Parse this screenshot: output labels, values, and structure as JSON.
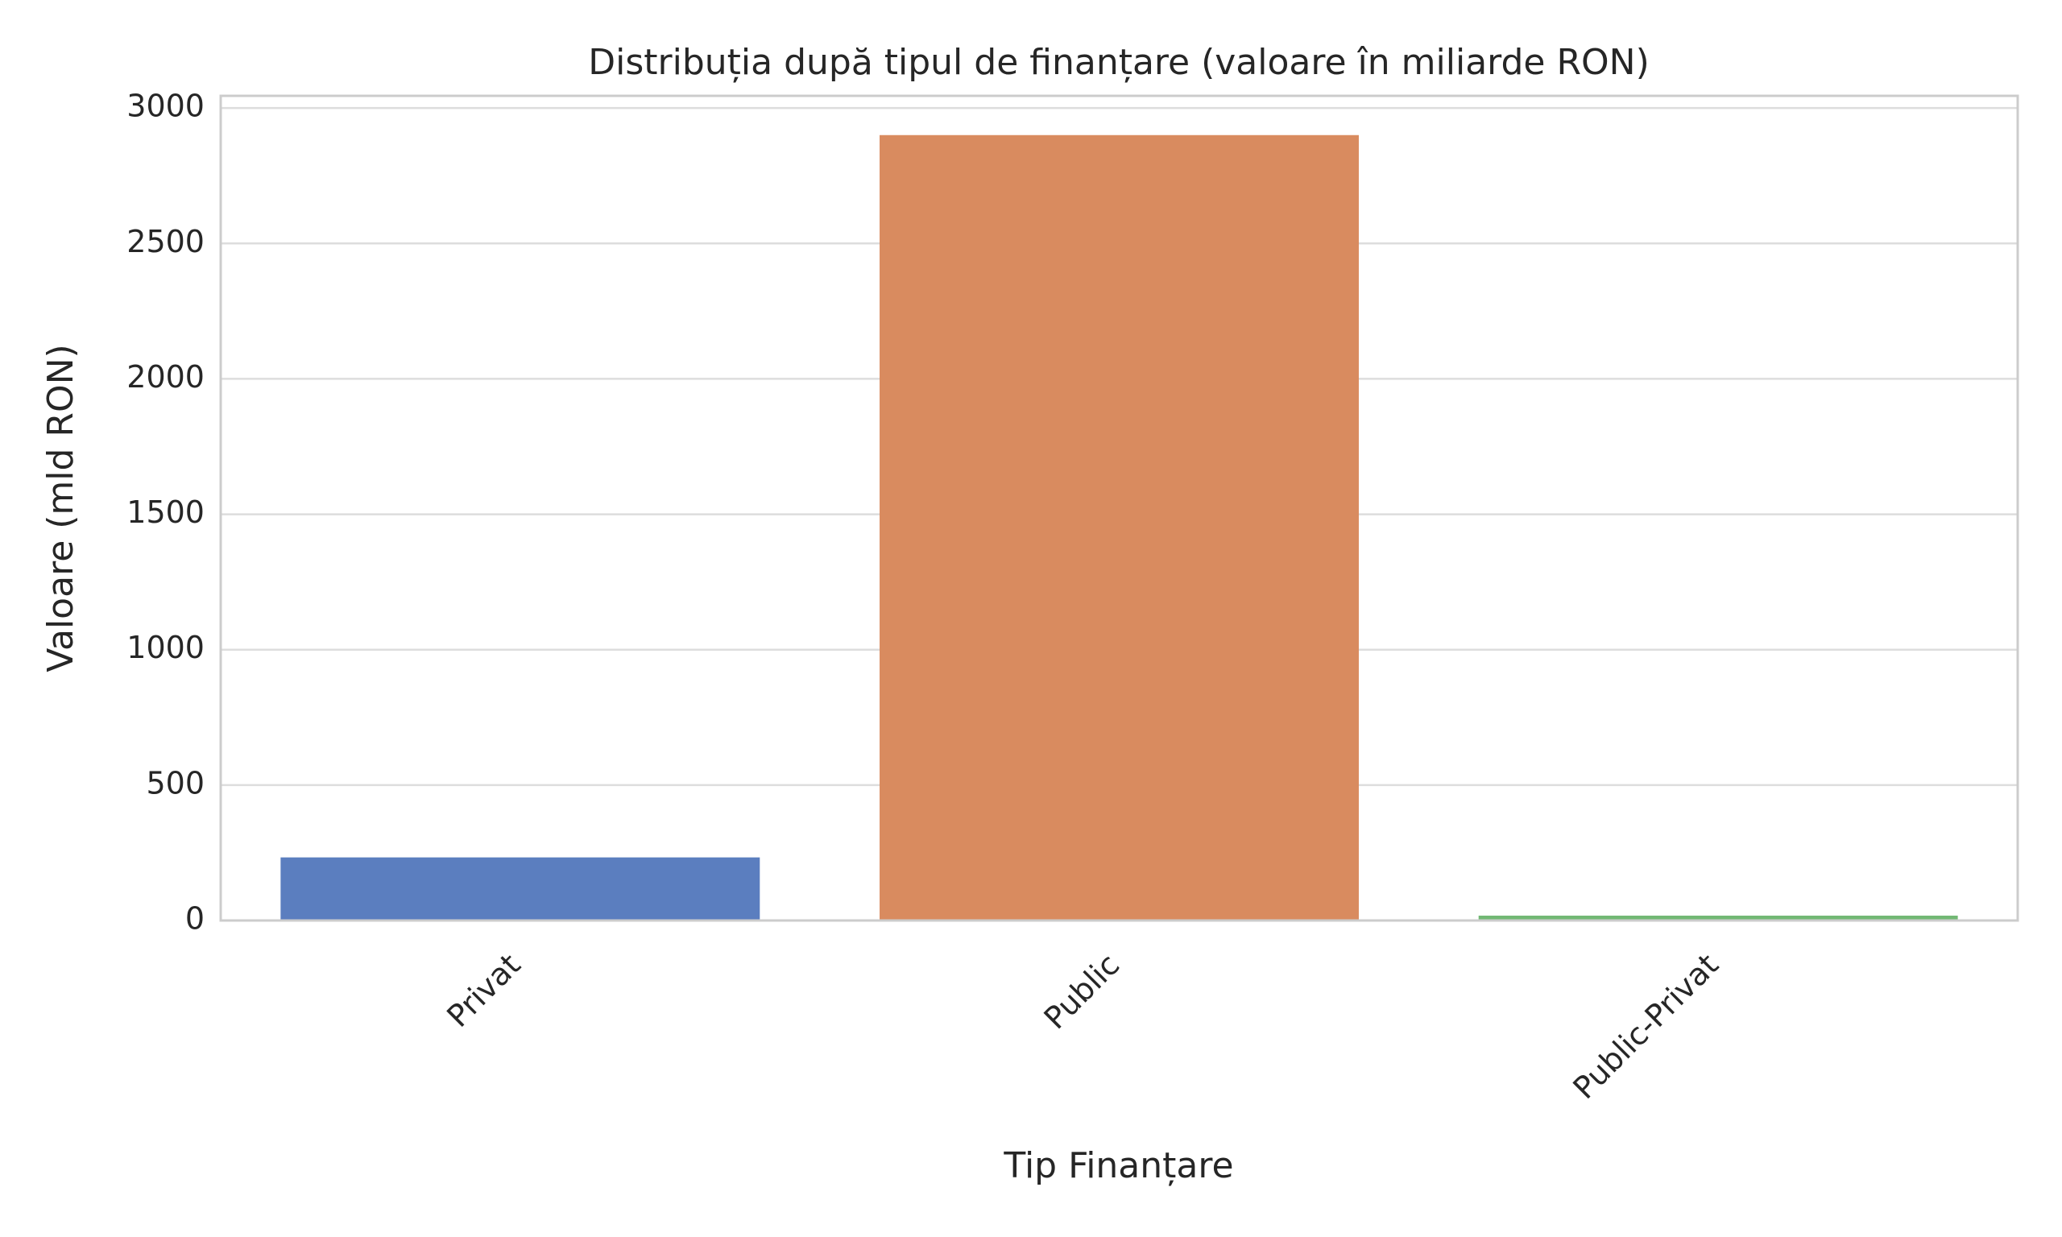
{
  "chart_data": {
    "type": "bar",
    "title": "Distribuția după tipul de finanțare (valoare în miliarde RON)",
    "xlabel": "Tip Finanțare",
    "ylabel": "Valoare (mld RON)",
    "categories": [
      "Privat",
      "Public",
      "Public-Privat"
    ],
    "values": [
      233,
      2900,
      18
    ],
    "colors": [
      "#5b7ebf",
      "#d98b5f",
      "#72b874"
    ],
    "ylim": [
      0,
      3045
    ],
    "yticks": [
      0,
      500,
      1000,
      1500,
      2000,
      2500,
      3000
    ],
    "grid": true
  }
}
